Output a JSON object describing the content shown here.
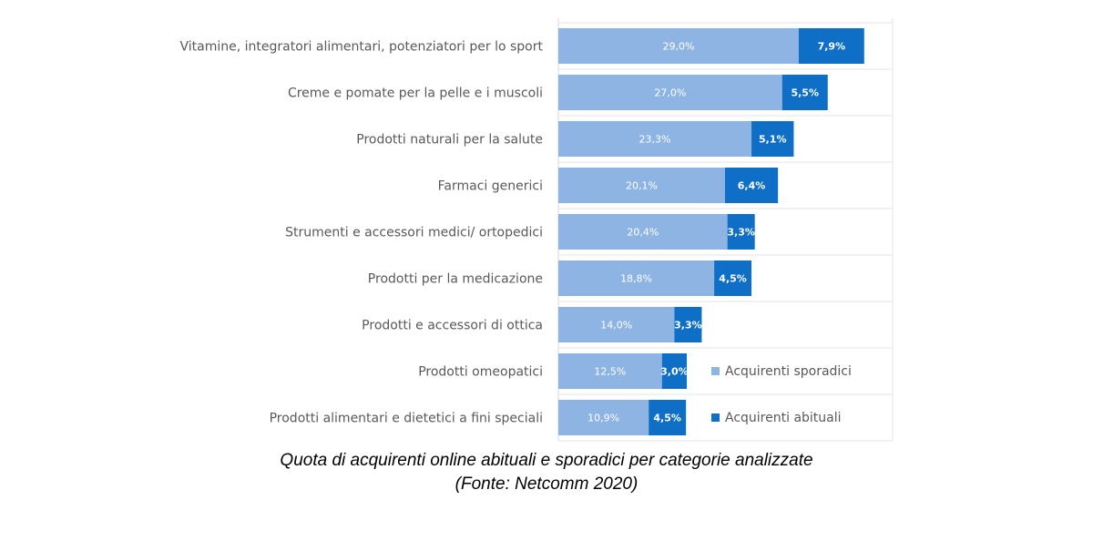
{
  "chart_data": {
    "type": "bar",
    "orientation": "horizontal",
    "stacked": true,
    "categories": [
      "Vitamine, integratori alimentari, potenziatori per lo sport",
      "Creme e pomate per la pelle e i muscoli",
      "Prodotti naturali per la salute",
      "Farmaci generici",
      "Strumenti e accessori medici/ ortopedici",
      "Prodotti per la medicazione",
      "Prodotti e accessori di ottica",
      "Prodotti omeopatici",
      "Prodotti alimentari e dietetici a fini speciali"
    ],
    "series": [
      {
        "name": "Acquirenti sporadici",
        "color": "#8eb4e3",
        "values": [
          29.0,
          27.0,
          23.3,
          20.1,
          20.4,
          18.8,
          14.0,
          12.5,
          10.9
        ],
        "labels": [
          "29,0%",
          "27,0%",
          "23,3%",
          "20,1%",
          "20,4%",
          "18,8%",
          "14,0%",
          "12,5%",
          "10,9%"
        ]
      },
      {
        "name": "Acquirenti abituali",
        "color": "#0f6fc6",
        "values": [
          7.9,
          5.5,
          5.1,
          6.4,
          3.3,
          4.5,
          3.3,
          3.0,
          4.5
        ],
        "labels": [
          "7,9%",
          "5,5%",
          "5,1%",
          "6,4%",
          "3,3%",
          "4,5%",
          "3,3%",
          "3,0%",
          "4,5%"
        ]
      }
    ],
    "xlim": [
      0,
      40
    ],
    "grid": "horizontal-separators",
    "legend_position": "bottom-right"
  },
  "caption": {
    "line1": "Quota di acquirenti online abituali e sporadici per categorie analizzate",
    "line2": "(Fonte: Netcomm 2020)"
  }
}
